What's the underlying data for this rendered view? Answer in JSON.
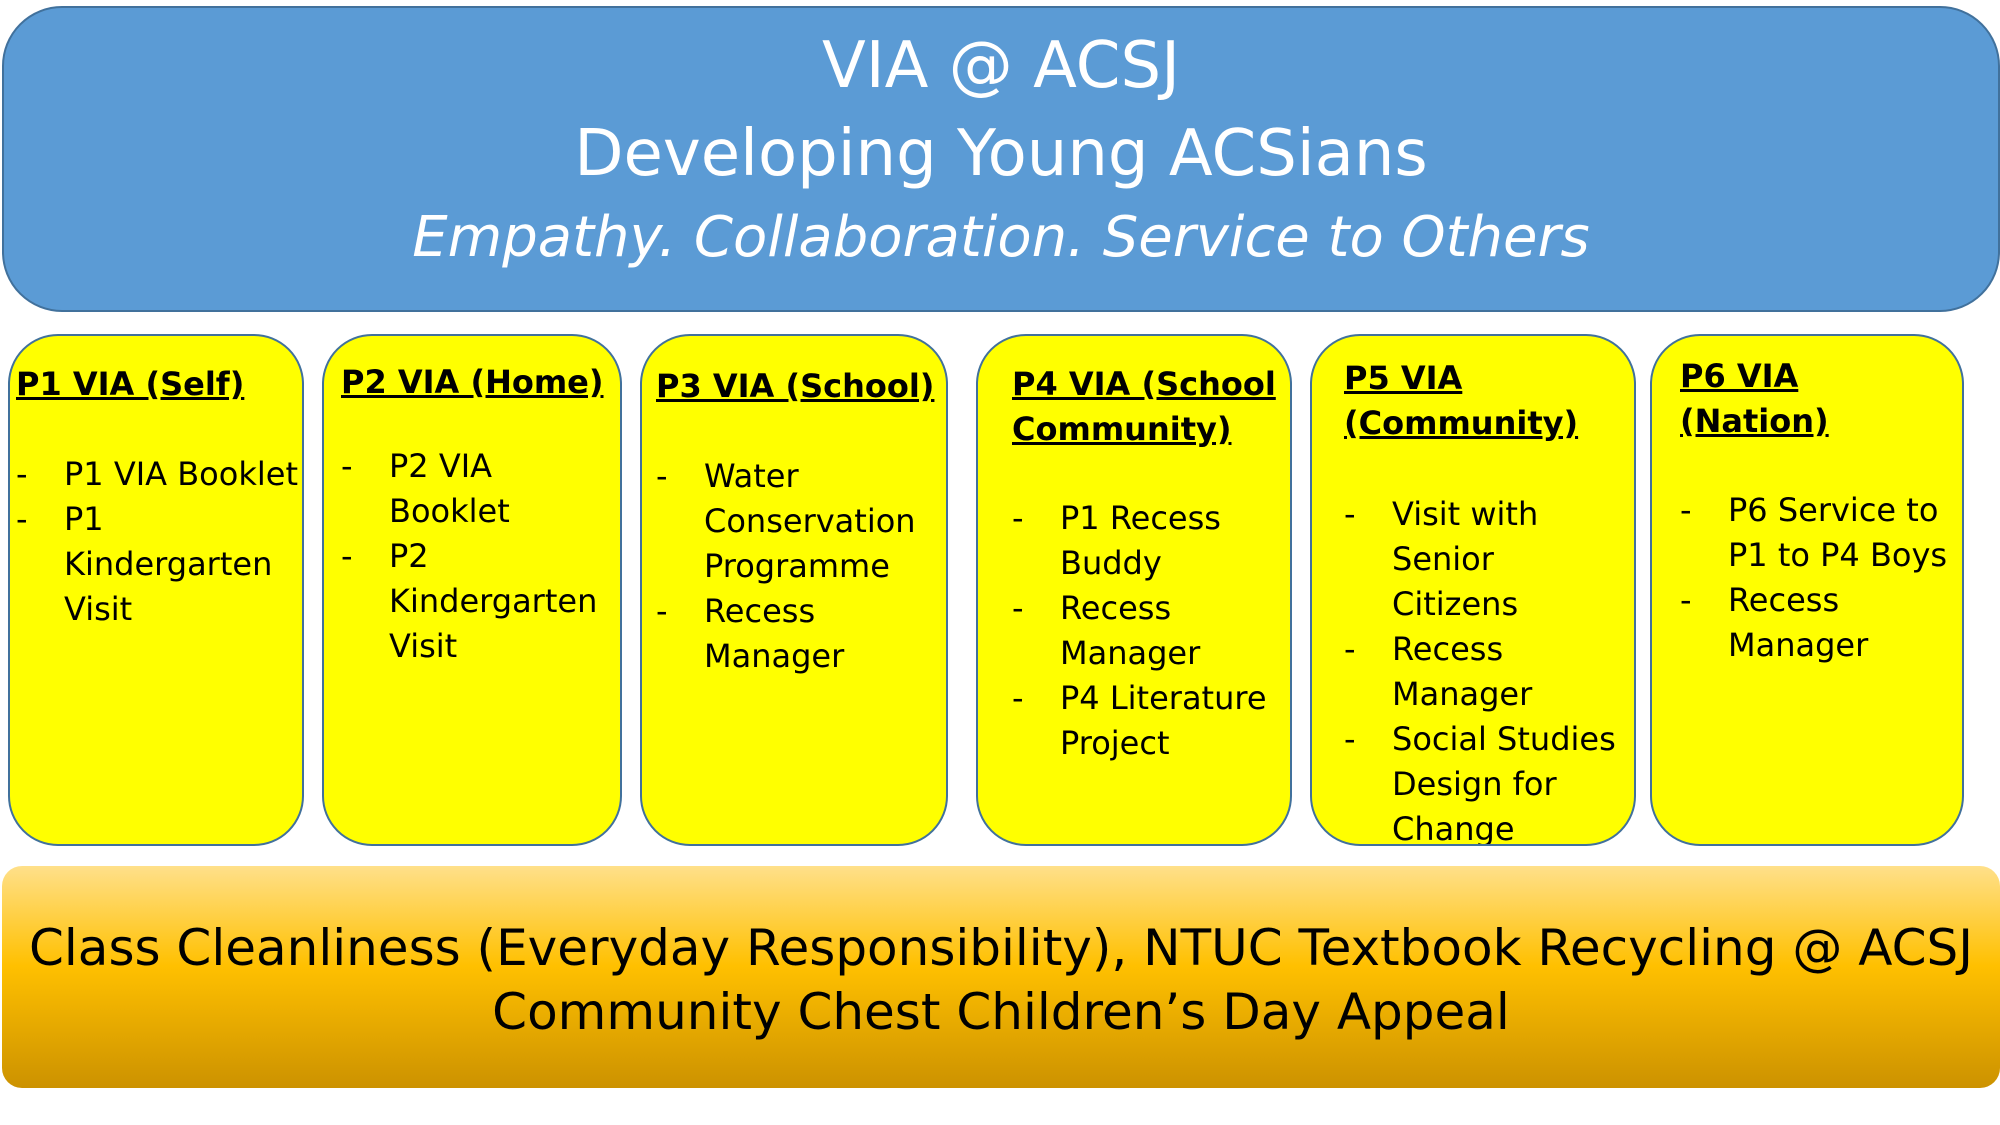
{
  "header": {
    "title": "VIA @ ACSJ",
    "subtitle": "Developing Young ACSians",
    "tagline": "Empathy. Collaboration. Service to Others"
  },
  "boxes": [
    {
      "title": "P1 VIA (Self)",
      "items": [
        "P1 VIA Booklet",
        "P1 Kindergarten Visit"
      ]
    },
    {
      "title": "P2 VIA (Home)",
      "items": [
        "P2 VIA Booklet",
        "P2 Kindergarten Visit"
      ]
    },
    {
      "title": "P3 VIA (School)",
      "items": [
        "Water Conservation Programme",
        "Recess Manager"
      ]
    },
    {
      "title": "P4 VIA (School Community)",
      "items": [
        "P1 Recess Buddy",
        "Recess Manager",
        "P4 Literature Project"
      ]
    },
    {
      "title": "P5 VIA (Community)",
      "items": [
        "Visit with Senior Citizens",
        "Recess Manager",
        "Social Studies Design for Change"
      ]
    },
    {
      "title": "P6 VIA (Nation)",
      "items": [
        "P6 Service to P1 to P4 Boys",
        "Recess Manager"
      ]
    }
  ],
  "footer": {
    "line1": "Class Cleanliness (Everyday Responsibility), NTUC Textbook Recycling @ ACSJ",
    "line2": "Community Chest Children’s Day Appeal"
  },
  "colors": {
    "header_fill": "#5b9bd5",
    "box_fill": "#ffff00",
    "footer_fill": "#ffc000"
  }
}
